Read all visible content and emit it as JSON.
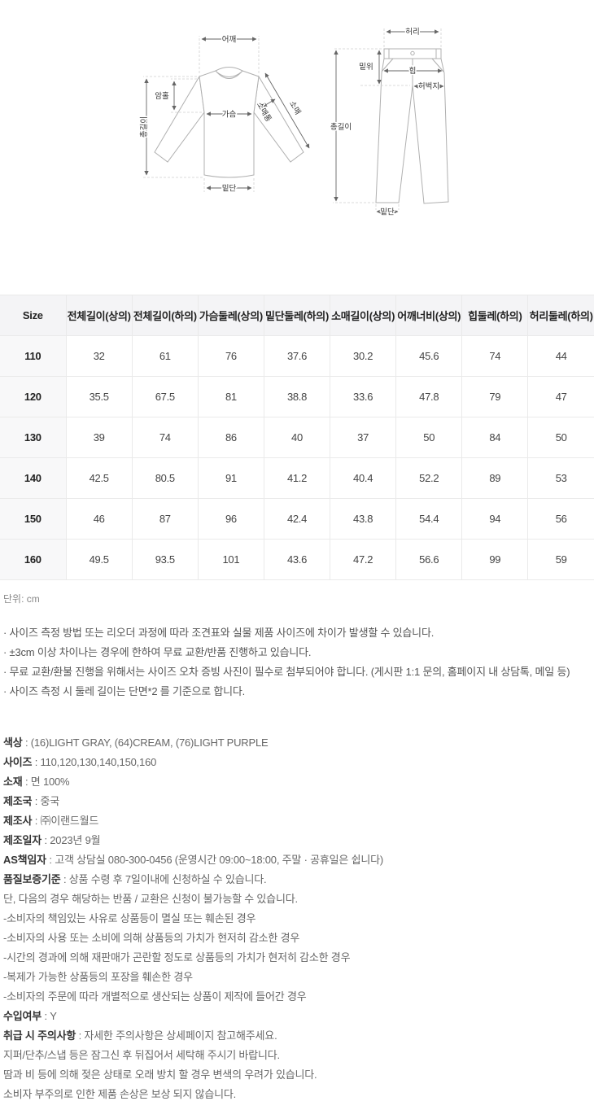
{
  "diagrams": {
    "top": {
      "shoulder": "어깨",
      "total_length": "총길이",
      "armhole": "암홀",
      "chest": "가슴",
      "hem": "밑단",
      "sleeve_width": "소매통",
      "sleeve_length": "소매"
    },
    "bottom": {
      "waist": "허리",
      "rise": "밑위",
      "hip": "힙",
      "thigh": "허벅지",
      "total_length": "총길이",
      "hem": "밑단"
    }
  },
  "size_table": {
    "headers": [
      "Size",
      "전체길이(상의)",
      "전체길이(하의)",
      "가슴둘레(상의)",
      "밑단둘레(하의)",
      "소매길이(상의)",
      "어깨너비(상의)",
      "힙둘레(하의)",
      "허리둘레(하의)"
    ],
    "rows": [
      {
        "size": "110",
        "values": [
          "32",
          "61",
          "76",
          "37.6",
          "30.2",
          "45.6",
          "74",
          "44"
        ]
      },
      {
        "size": "120",
        "values": [
          "35.5",
          "67.5",
          "81",
          "38.8",
          "33.6",
          "47.8",
          "79",
          "47"
        ]
      },
      {
        "size": "130",
        "values": [
          "39",
          "74",
          "86",
          "40",
          "37",
          "50",
          "84",
          "50"
        ]
      },
      {
        "size": "140",
        "values": [
          "42.5",
          "80.5",
          "91",
          "41.2",
          "40.4",
          "52.2",
          "89",
          "53"
        ]
      },
      {
        "size": "150",
        "values": [
          "46",
          "87",
          "96",
          "42.4",
          "43.8",
          "54.4",
          "94",
          "56"
        ]
      },
      {
        "size": "160",
        "values": [
          "49.5",
          "93.5",
          "101",
          "43.6",
          "47.2",
          "56.6",
          "99",
          "59"
        ]
      }
    ]
  },
  "unit_note": "단위: cm",
  "size_notes": [
    "· 사이즈 측정 방법 또는 리오더 과정에 따라 조견표와 실물 제품 사이즈에 차이가 발생할 수 있습니다.",
    "· ±3cm 이상 차이나는 경우에 한하여 무료 교환/반품 진행하고 있습니다.",
    "· 무료 교환/환불 진행을 위해서는 사이즈 오차 증빙 사진이 필수로 첨부되어야 합니다. (게시판 1:1 문의, 홈페이지 내 상담톡, 메일 등)",
    "· 사이즈 측정 시 둘레 길이는 단면*2 를 기준으로 합니다."
  ],
  "product_info": [
    {
      "label": "색상",
      "value": "(16)LIGHT GRAY, (64)CREAM, (76)LIGHT PURPLE"
    },
    {
      "label": "사이즈",
      "value": "110,120,130,140,150,160"
    },
    {
      "label": "소재",
      "value": "면 100%"
    },
    {
      "label": "제조국",
      "value": "중국"
    },
    {
      "label": "제조사",
      "value": "㈜이랜드월드"
    },
    {
      "label": "제조일자",
      "value": "2023년 9월"
    },
    {
      "label": "AS책임자",
      "value": "고객 상담실 080-300-0456 (운영시간 09:00~18:00, 주말 · 공휴일은 쉽니다)"
    },
    {
      "label": "품질보증기준",
      "value": "상품 수령 후 7일이내에 신청하실 수 있습니다."
    },
    {
      "label": null,
      "value": "단, 다음의 경우 해당하는 반품 / 교환은 신청이 불가능할 수 있습니다."
    },
    {
      "label": null,
      "value": "-소비자의 책임있는 사유로 상품등이 멸실 또는 훼손된 경우"
    },
    {
      "label": null,
      "value": "-소비자의 사용 또는 소비에 의해 상품등의 가치가 현저히 감소한 경우"
    },
    {
      "label": null,
      "value": "-시간의 경과에 의해 재판매가 곤란할 정도로 상품등의 가치가 현저히 감소한 경우"
    },
    {
      "label": null,
      "value": "-복제가 가능한 상품등의 포장을 훼손한 경우"
    },
    {
      "label": null,
      "value": "-소비자의 주문에 따라 개별적으로 생산되는 상품이 제작에 들어간 경우"
    },
    {
      "label": "수입여부",
      "value": "Y"
    },
    {
      "label": "취급 시 주의사항",
      "value": "자세한 주의사항은 상세페이지 참고해주세요."
    },
    {
      "label": null,
      "value": "지퍼/단추/스냅 등은 잠그신 후 뒤집어서 세탁해 주시기 바랍니다."
    },
    {
      "label": null,
      "value": "땀과 비 등에 의해 젖은 상태로 오래 방치 할 경우 변색의 우려가 있습니다."
    },
    {
      "label": null,
      "value": "소비자 부주의로 인한 제품 손상은 보상 되지 않습니다."
    }
  ],
  "colors": {
    "table_header_bg": "#f4f4f6",
    "size_col_bg": "#f8f8f9",
    "table_border": "#eaeaea",
    "label_text": "#333333",
    "body_text": "#666666"
  }
}
